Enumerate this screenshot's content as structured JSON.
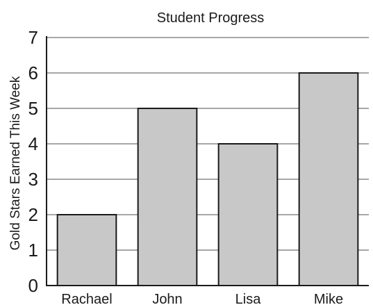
{
  "chart_data": {
    "type": "bar",
    "title": "Student Progress",
    "xlabel": "",
    "ylabel": "Gold Stars Earned This Week",
    "categories": [
      "Rachael",
      "John",
      "Lisa",
      "Mike"
    ],
    "values": [
      2,
      5,
      4,
      6
    ],
    "ylim": [
      0,
      7
    ],
    "yticks": [
      "0",
      "1",
      "2",
      "3",
      "4",
      "5",
      "6",
      "7"
    ],
    "grid": true,
    "legend": "none",
    "colors": {
      "bar_fill": "#c8c8c8",
      "bar_stroke": "#1a1a1a",
      "grid": "#8a8a8a",
      "axis": "#1a1a1a"
    }
  }
}
